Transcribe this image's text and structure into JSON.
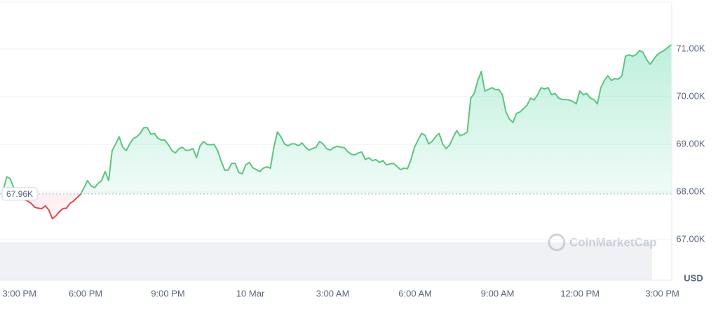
{
  "chart_data": {
    "type": "line",
    "x": [
      0,
      0.128,
      0.256,
      0.384,
      0.512,
      0.64,
      0.768,
      0.896,
      1.024,
      1.152,
      1.28,
      1.408,
      1.536,
      1.664,
      1.792,
      1.92,
      2.048,
      2.176,
      2.304,
      2.432,
      2.56,
      2.688,
      2.816,
      2.944,
      3.072,
      3.2,
      3.328,
      3.456,
      3.584,
      3.712,
      3.84,
      3.968,
      4.096,
      4.224,
      4.352,
      4.48,
      4.608,
      4.736,
      4.864,
      4.992,
      5.12,
      5.248,
      5.376,
      5.504,
      5.632,
      5.76,
      5.888,
      6.016,
      6.144,
      6.272,
      6.4,
      6.528,
      6.656,
      6.784,
      6.912,
      7.04,
      7.168,
      7.296,
      7.424,
      7.552,
      7.68,
      7.808,
      7.936,
      8.064,
      8.192,
      8.32,
      8.448,
      8.576,
      8.704,
      8.832,
      8.96,
      9.088,
      9.216,
      9.344,
      9.472,
      9.6,
      9.728,
      9.856,
      9.984,
      10.112,
      10.24,
      10.368,
      10.496,
      10.624,
      10.752,
      10.88,
      11.008,
      11.136,
      11.264,
      11.392,
      11.52,
      11.648,
      11.776,
      11.904,
      12.032,
      12.16,
      12.288,
      12.416,
      12.544,
      12.672,
      12.8,
      12.928,
      13.056,
      13.184,
      13.312,
      13.44,
      13.568,
      13.696,
      13.824,
      13.952,
      14.08,
      14.208,
      14.336,
      14.464,
      14.592,
      14.72,
      14.848,
      14.976,
      15.104,
      15.232,
      15.36,
      15.488,
      15.616,
      15.744,
      15.872,
      16,
      16.128,
      16.256,
      16.384,
      16.512,
      16.64,
      16.768,
      16.896,
      17.024,
      17.152,
      17.28,
      17.408,
      17.536,
      17.664,
      17.792,
      17.92,
      18.048,
      18.176,
      18.304,
      18.432,
      18.56,
      18.688,
      18.816,
      18.944,
      19.072,
      19.2,
      19.328,
      19.456,
      19.584,
      19.712,
      19.84,
      19.968,
      20.096,
      20.224,
      20.352,
      20.48,
      20.608,
      20.736,
      20.864,
      20.992,
      21.12,
      21.248,
      21.376,
      21.504,
      21.632,
      21.76,
      21.888,
      22.016,
      22.144,
      22.272,
      22.4,
      22.528,
      22.656,
      22.784,
      22.912,
      23.04,
      23.168,
      23.296,
      23.424,
      23.552,
      23.68,
      23.808,
      23.936,
      24.064,
      24.192,
      24.32
    ],
    "values": [
      68030,
      68320,
      68280,
      68090,
      67940,
      67880,
      67840,
      67810,
      67760,
      67680,
      67660,
      67650,
      67710,
      67620,
      67440,
      67500,
      67590,
      67650,
      67660,
      67760,
      67810,
      67880,
      67950,
      68090,
      68240,
      68130,
      68090,
      68180,
      68240,
      68430,
      68240,
      68870,
      69010,
      69160,
      68940,
      68870,
      69010,
      69120,
      69160,
      69230,
      69350,
      69350,
      69210,
      69230,
      69130,
      69090,
      69090,
      68990,
      68870,
      68820,
      68910,
      68940,
      68870,
      68880,
      68910,
      68720,
      68970,
      69060,
      69000,
      68990,
      69000,
      68870,
      68650,
      68460,
      68460,
      68600,
      68600,
      68410,
      68380,
      68570,
      68620,
      68510,
      68470,
      68430,
      68500,
      68530,
      68500,
      68940,
      69260,
      69160,
      69010,
      68970,
      69010,
      69010,
      68970,
      69030,
      68940,
      68880,
      68910,
      68940,
      69060,
      69010,
      68910,
      68880,
      68930,
      68960,
      68940,
      68930,
      68850,
      68790,
      68780,
      68820,
      68840,
      68680,
      68720,
      68660,
      68680,
      68620,
      68660,
      68570,
      68590,
      68600,
      68540,
      68470,
      68500,
      68490,
      68680,
      68940,
      69090,
      69230,
      69190,
      69010,
      69060,
      69160,
      69230,
      69010,
      68910,
      68990,
      69150,
      69290,
      69180,
      69210,
      69260,
      69970,
      70070,
      70340,
      70530,
      70120,
      70150,
      70190,
      70150,
      70150,
      70040,
      69680,
      69530,
      69460,
      69650,
      69680,
      69750,
      69820,
      69970,
      69930,
      70040,
      70190,
      70160,
      70190,
      70040,
      70070,
      69970,
      69940,
      69940,
      69930,
      69900,
      69850,
      70120,
      70040,
      70070,
      69970,
      69940,
      69850,
      70190,
      70340,
      70440,
      70340,
      70380,
      70370,
      70440,
      70850,
      70880,
      70850,
      70880,
      70970,
      70930,
      70780,
      70680,
      70780,
      70880,
      70930,
      70970,
      71030,
      71090
    ],
    "color": "#5dc47f",
    "down_color": "#e0474c",
    "baseline": {
      "value": 67960,
      "label": "67.96K"
    },
    "xlim": [
      -0.115,
      24.34
    ],
    "xticks": [
      {
        "value": 0,
        "label": "3:00 PM"
      },
      {
        "value": 3,
        "label": "6:00 PM"
      },
      {
        "value": 6,
        "label": "9:00 PM"
      },
      {
        "value": 9,
        "label": "10 Mar"
      },
      {
        "value": 12,
        "label": "3:00 AM"
      },
      {
        "value": 15,
        "label": "6:00 AM"
      },
      {
        "value": 18,
        "label": "9:00 AM"
      },
      {
        "value": 21,
        "label": "12:00 PM"
      },
      {
        "value": 24,
        "label": "3:00 PM"
      }
    ],
    "ylim": [
      66150,
      71985
    ],
    "yticks": [
      {
        "value": 67000,
        "label": "67.00K"
      },
      {
        "value": 68000,
        "label": "68.00K"
      },
      {
        "value": 69000,
        "label": "69.00K"
      },
      {
        "value": 70000,
        "label": "70.00K"
      },
      {
        "value": 71000,
        "label": "71.00K"
      }
    ],
    "grid": true,
    "y_unit_label": "USD",
    "watermark": "CoinMarketCap"
  }
}
